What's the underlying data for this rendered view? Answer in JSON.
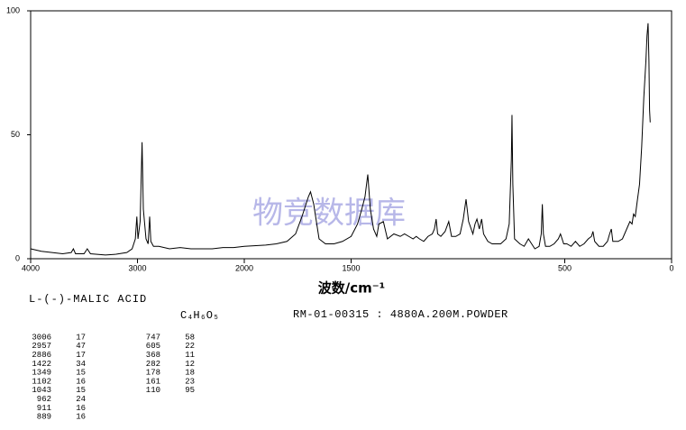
{
  "chart_data": {
    "type": "line",
    "watermark": "物竞数据库",
    "xlabel": "波数/cm⁻¹",
    "compound": "L-(-)-MALIC ACID",
    "formula": "C₄H₆O₅",
    "reference": "RM-01-00315 : 4880A.200M.POWDER",
    "xlim": [
      4000,
      0
    ],
    "xscale_break": 2000,
    "xticks": [
      4000,
      3000,
      2000,
      1500,
      500,
      0
    ],
    "ylim": [
      0,
      100
    ],
    "yticks": [
      0,
      50,
      100
    ],
    "color": "#000000",
    "x": [
      4000,
      3900,
      3800,
      3700,
      3620,
      3600,
      3580,
      3500,
      3470,
      3440,
      3300,
      3200,
      3100,
      3050,
      3020,
      3006,
      2995,
      2975,
      2957,
      2945,
      2920,
      2900,
      2886,
      2875,
      2850,
      2800,
      2700,
      2600,
      2500,
      2400,
      2300,
      2200,
      2100,
      2000,
      1900,
      1850,
      1800,
      1760,
      1730,
      1700,
      1690,
      1675,
      1650,
      1620,
      1580,
      1540,
      1500,
      1470,
      1450,
      1435,
      1422,
      1410,
      1395,
      1380,
      1370,
      1349,
      1330,
      1300,
      1270,
      1250,
      1230,
      1210,
      1195,
      1180,
      1160,
      1140,
      1120,
      1110,
      1102,
      1095,
      1080,
      1060,
      1043,
      1030,
      1010,
      990,
      975,
      962,
      950,
      930,
      920,
      911,
      900,
      889,
      880,
      860,
      840,
      820,
      800,
      775,
      760,
      750,
      747,
      743,
      735,
      710,
      690,
      670,
      655,
      640,
      620,
      610,
      605,
      600,
      590,
      570,
      550,
      530,
      520,
      505,
      490,
      470,
      450,
      430,
      410,
      390,
      375,
      368,
      360,
      340,
      320,
      300,
      290,
      282,
      275,
      250,
      230,
      210,
      195,
      185,
      178,
      170,
      161,
      150,
      140,
      130,
      120,
      115,
      110,
      106,
      103,
      100
    ],
    "values": [
      4,
      3,
      2.5,
      2,
      2.5,
      4,
      2,
      2,
      4,
      2,
      1.5,
      1.8,
      2.5,
      4,
      8,
      17,
      8,
      15,
      47,
      20,
      8,
      6,
      17,
      7,
      5,
      5,
      4,
      4.5,
      4,
      4,
      4,
      4.5,
      4.5,
      5,
      5.5,
      6,
      7,
      10,
      17,
      25,
      27,
      22,
      8,
      6,
      6,
      7,
      9,
      14,
      20,
      25,
      34,
      20,
      12,
      9,
      14,
      15,
      8,
      10,
      9,
      10,
      9,
      8,
      9,
      8,
      7,
      9,
      10,
      12,
      16,
      10,
      9,
      11,
      15,
      9,
      9,
      10,
      16,
      24,
      15,
      10,
      14,
      16,
      12,
      16,
      10,
      7,
      6,
      6,
      6,
      8,
      14,
      40,
      58,
      30,
      8,
      6,
      5,
      8,
      6,
      4,
      5,
      10,
      22,
      10,
      5,
      5,
      6,
      8,
      10,
      6,
      6,
      5,
      7,
      5,
      6,
      8,
      9,
      11,
      7,
      5,
      5,
      7,
      10,
      12,
      7,
      7,
      8,
      12,
      15,
      14,
      18,
      17,
      23,
      30,
      45,
      65,
      80,
      90,
      95,
      80,
      60,
      55
    ],
    "peak_table": [
      [
        3006,
        17
      ],
      [
        2957,
        47
      ],
      [
        2886,
        17
      ],
      [
        1422,
        34
      ],
      [
        1349,
        15
      ],
      [
        1102,
        16
      ],
      [
        1043,
        15
      ],
      [
        962,
        24
      ],
      [
        911,
        16
      ],
      [
        889,
        16
      ],
      [
        747,
        58
      ],
      [
        605,
        22
      ],
      [
        368,
        11
      ],
      [
        282,
        12
      ],
      [
        178,
        18
      ],
      [
        161,
        23
      ],
      [
        110,
        95
      ]
    ]
  }
}
